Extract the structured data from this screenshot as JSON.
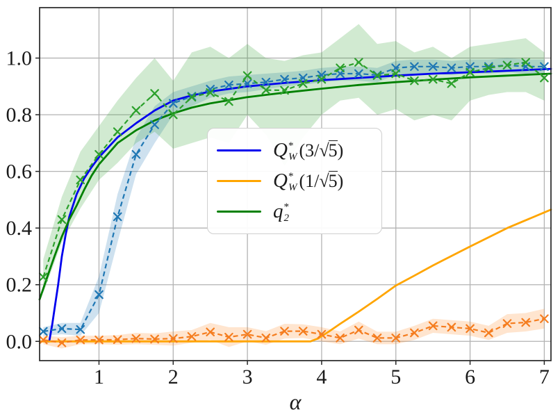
{
  "figure": {
    "background": "#ffffff",
    "plot_background": "#ffffff"
  },
  "axes": {
    "xlabel": "α",
    "x_ticks": [
      1,
      2,
      3,
      4,
      5,
      6,
      7
    ],
    "x_ticklabels": [
      "1",
      "2",
      "3",
      "4",
      "5",
      "6",
      "7"
    ],
    "y_ticks": [
      0.0,
      0.2,
      0.4,
      0.6,
      0.8,
      1.0
    ],
    "y_ticklabels": [
      "0.0",
      "0.2",
      "0.4",
      "0.6",
      "0.8",
      "1.0"
    ],
    "xlim": [
      0.2,
      7.09
    ],
    "ylim": [
      -0.068,
      1.178
    ],
    "grid": true,
    "grid_color": "#b3b3b3",
    "spine_color": "#262626",
    "tick_label_color": "#1a1a1a"
  },
  "legend": {
    "items": [
      {
        "label_text": "Q*_W(3/√5)",
        "base": "Q",
        "sup": "*",
        "sub": "W",
        "open": "(3/",
        "sqrt": "√",
        "radicand": "5",
        "close": ")",
        "color": "#0000ee"
      },
      {
        "label_text": "Q*_W(1/√5)",
        "base": "Q",
        "sup": "*",
        "sub": "W",
        "open": "(1/",
        "sqrt": "√",
        "radicand": "5",
        "close": ")",
        "color": "#ffa500"
      },
      {
        "label_text": "q*_2",
        "base": "q",
        "sup": "*",
        "sub": "2",
        "open": "",
        "sqrt": "",
        "radicand": "",
        "close": "",
        "color": "#008000"
      }
    ]
  },
  "chart_data": {
    "type": "line",
    "title": "",
    "xlabel": "α",
    "ylabel": "",
    "xlim": [
      0.2,
      7.09
    ],
    "ylim": [
      -0.068,
      1.178
    ],
    "grid": true,
    "legend_position": "center-left-of-plot",
    "series": [
      {
        "name": "QW3_theory",
        "label": "Q*_W(3/√5)",
        "style": "solid",
        "color": "#0000ee",
        "width": 2.8,
        "x": [
          0.3,
          0.33,
          0.37,
          0.41,
          0.45,
          0.5,
          0.55,
          0.6,
          0.7,
          0.8,
          0.9,
          1.0,
          1.25,
          1.5,
          1.75,
          2.0,
          2.25,
          2.5,
          3.0,
          3.5,
          4.0,
          4.5,
          5.0,
          5.5,
          6.0,
          6.5,
          7.09
        ],
        "y": [
          0,
          0,
          0.06,
          0.13,
          0.2,
          0.3,
          0.375,
          0.44,
          0.52,
          0.575,
          0.615,
          0.65,
          0.72,
          0.77,
          0.815,
          0.85,
          0.868,
          0.882,
          0.9,
          0.912,
          0.922,
          0.93,
          0.938,
          0.945,
          0.95,
          0.955,
          0.962
        ]
      },
      {
        "name": "QW1_theory",
        "label": "Q*_W(1/√5)",
        "style": "solid",
        "color": "#ffa500",
        "width": 2.8,
        "x": [
          0.2,
          3.85,
          3.95,
          4.1,
          4.25,
          4.5,
          4.75,
          5.0,
          5.25,
          5.5,
          6.0,
          6.5,
          7.09
        ],
        "y": [
          0.0,
          0.0,
          0.01,
          0.035,
          0.062,
          0.105,
          0.15,
          0.197,
          0.232,
          0.268,
          0.335,
          0.4,
          0.465
        ]
      },
      {
        "name": "q2_theory",
        "label": "q*_2",
        "style": "solid",
        "color": "#008000",
        "width": 2.8,
        "x": [
          0.2,
          0.3,
          0.4,
          0.5,
          0.6,
          0.7,
          0.8,
          0.9,
          1.0,
          1.25,
          1.5,
          1.75,
          2.0,
          2.25,
          2.5,
          3.0,
          3.5,
          4.0,
          4.5,
          5.0,
          5.5,
          6.0,
          6.5,
          7.09
        ],
        "y": [
          0.148,
          0.225,
          0.3,
          0.37,
          0.43,
          0.48,
          0.535,
          0.585,
          0.625,
          0.7,
          0.745,
          0.78,
          0.805,
          0.825,
          0.84,
          0.862,
          0.878,
          0.892,
          0.905,
          0.915,
          0.924,
          0.932,
          0.938,
          0.945
        ]
      },
      {
        "name": "QW3_empirical",
        "label": "",
        "style": "dashed-x",
        "color": "#1f77b4",
        "width": 2.2,
        "band_color": "#1f77b4",
        "band_opacity": 0.22,
        "x": [
          0.25,
          0.5,
          0.75,
          1.0,
          1.25,
          1.5,
          1.75,
          2.0,
          2.25,
          2.5,
          2.75,
          3.0,
          3.25,
          3.5,
          3.75,
          4.0,
          4.25,
          4.5,
          4.75,
          5.0,
          5.25,
          5.5,
          5.75,
          6.0,
          6.25,
          6.5,
          6.75,
          7.0
        ],
        "y": [
          0.035,
          0.045,
          0.042,
          0.165,
          0.44,
          0.66,
          0.765,
          0.84,
          0.865,
          0.89,
          0.905,
          0.91,
          0.915,
          0.925,
          0.93,
          0.94,
          0.945,
          0.945,
          0.94,
          0.965,
          0.97,
          0.97,
          0.965,
          0.97,
          0.97,
          0.975,
          0.97,
          0.97
        ],
        "band_lower": [
          0.02,
          0.025,
          0.02,
          0.1,
          0.35,
          0.59,
          0.7,
          0.8,
          0.83,
          0.86,
          0.875,
          0.88,
          0.89,
          0.9,
          0.905,
          0.915,
          0.92,
          0.92,
          0.915,
          0.94,
          0.945,
          0.945,
          0.94,
          0.945,
          0.945,
          0.95,
          0.945,
          0.945
        ],
        "band_upper": [
          0.05,
          0.065,
          0.065,
          0.23,
          0.52,
          0.72,
          0.83,
          0.88,
          0.9,
          0.92,
          0.935,
          0.94,
          0.945,
          0.95,
          0.955,
          0.965,
          0.97,
          0.97,
          0.965,
          0.99,
          0.995,
          0.995,
          0.99,
          0.995,
          0.995,
          1.0,
          0.995,
          0.995
        ]
      },
      {
        "name": "QW1_empirical",
        "label": "",
        "style": "dashed-x",
        "color": "#f57d1f",
        "width": 2.2,
        "band_color": "#ff7f0e",
        "band_opacity": 0.2,
        "x": [
          0.25,
          0.5,
          0.75,
          1.0,
          1.25,
          1.5,
          1.75,
          2.0,
          2.25,
          2.5,
          2.75,
          3.0,
          3.25,
          3.5,
          3.75,
          4.0,
          4.25,
          4.5,
          4.75,
          5.0,
          5.25,
          5.5,
          5.75,
          6.0,
          6.25,
          6.5,
          6.75,
          7.0
        ],
        "y": [
          0.005,
          -0.005,
          0.005,
          0.005,
          0.006,
          0.01,
          0.008,
          0.01,
          0.017,
          0.033,
          0.015,
          0.025,
          0.012,
          0.036,
          0.036,
          0.025,
          0.012,
          0.04,
          0.012,
          0.012,
          0.03,
          0.055,
          0.05,
          0.045,
          0.03,
          0.063,
          0.067,
          0.08
        ],
        "band_lower": [
          -0.01,
          -0.025,
          -0.01,
          -0.01,
          -0.012,
          -0.01,
          -0.012,
          -0.015,
          -0.005,
          0.005,
          -0.02,
          0.0,
          -0.012,
          0.01,
          0.012,
          0.0,
          -0.01,
          0.01,
          -0.01,
          -0.01,
          0.005,
          0.03,
          0.025,
          0.02,
          0.005,
          0.03,
          0.035,
          0.045
        ],
        "band_upper": [
          0.02,
          0.015,
          0.02,
          0.02,
          0.022,
          0.03,
          0.028,
          0.035,
          0.04,
          0.065,
          0.05,
          0.05,
          0.036,
          0.062,
          0.06,
          0.05,
          0.035,
          0.07,
          0.034,
          0.034,
          0.055,
          0.08,
          0.075,
          0.07,
          0.055,
          0.096,
          0.1,
          0.115
        ]
      },
      {
        "name": "q2_empirical",
        "label": "",
        "style": "dashed-x",
        "color": "#2ca02c",
        "width": 2.2,
        "band_color": "#2ca02c",
        "band_opacity": 0.22,
        "x": [
          0.25,
          0.5,
          0.75,
          1.0,
          1.25,
          1.5,
          1.75,
          2.0,
          2.25,
          2.5,
          2.75,
          3.0,
          3.25,
          3.5,
          3.75,
          4.0,
          4.25,
          4.5,
          4.75,
          5.0,
          5.25,
          5.5,
          5.75,
          6.0,
          6.25,
          6.5,
          6.75,
          7.0
        ],
        "y": [
          0.227,
          0.43,
          0.57,
          0.66,
          0.74,
          0.815,
          0.875,
          0.8,
          0.862,
          0.878,
          0.847,
          0.938,
          0.887,
          0.886,
          0.91,
          0.925,
          0.965,
          0.985,
          0.938,
          0.945,
          0.92,
          0.925,
          0.91,
          0.95,
          0.965,
          0.975,
          0.985,
          0.93
        ],
        "band_lower": [
          0.17,
          0.35,
          0.47,
          0.57,
          0.63,
          0.7,
          0.74,
          0.68,
          0.7,
          0.72,
          0.7,
          0.8,
          0.73,
          0.62,
          0.72,
          0.8,
          0.85,
          0.86,
          0.8,
          0.82,
          0.78,
          0.8,
          0.78,
          0.85,
          0.87,
          0.88,
          0.88,
          0.85
        ],
        "band_upper": [
          0.29,
          0.51,
          0.67,
          0.76,
          0.85,
          0.93,
          1.0,
          0.92,
          1.02,
          1.04,
          1.0,
          1.05,
          1.0,
          0.99,
          1.01,
          1.02,
          1.07,
          1.12,
          1.05,
          1.06,
          1.02,
          1.04,
          1.0,
          1.04,
          1.05,
          1.06,
          1.07,
          1.02
        ]
      }
    ]
  }
}
